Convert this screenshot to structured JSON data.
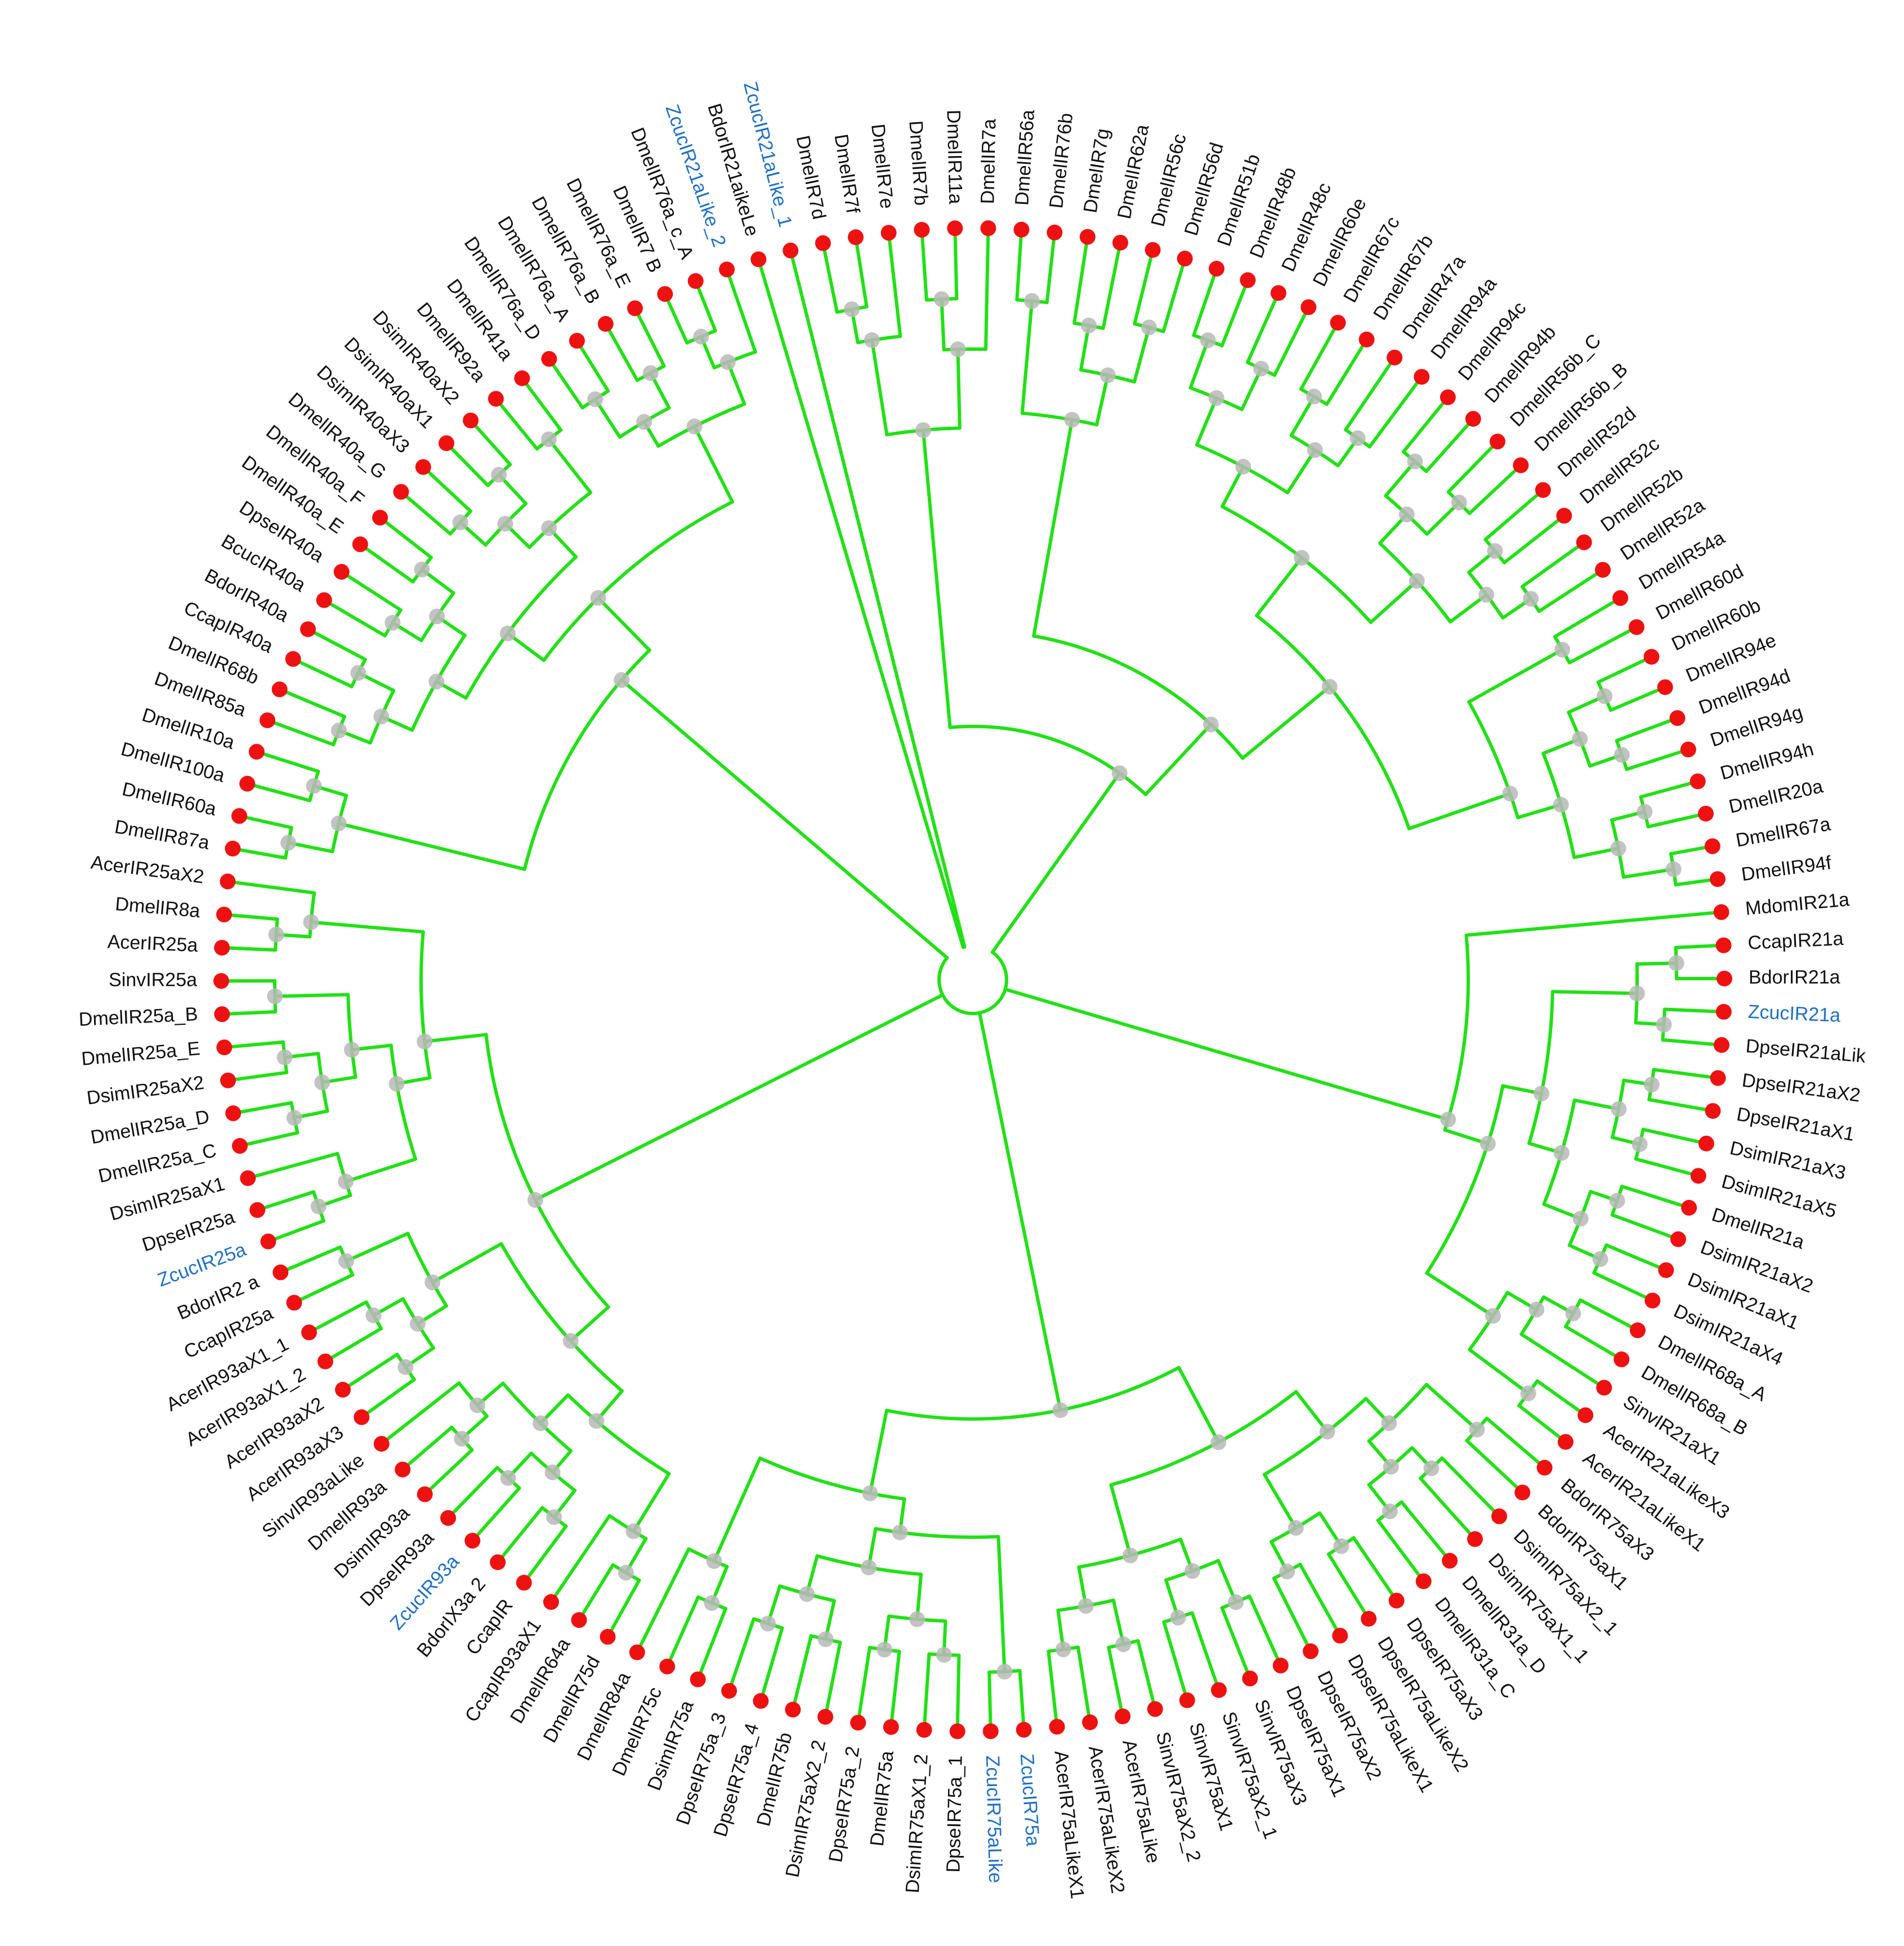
{
  "colors": {
    "branch": "#22e016",
    "tip": "#ee1111",
    "node": "#b8b8b8",
    "label": "#111111",
    "highlight": "#1f6fc5"
  },
  "tree": {
    "tips": [
      {
        "label": "DmelIR7d"
      },
      {
        "label": "DmelIR7f"
      },
      {
        "label": "DmelIR7e"
      },
      {
        "label": "DmelIR7b"
      },
      {
        "label": "DmelIR11a"
      },
      {
        "label": "DmelIR7a"
      },
      {
        "label": "DmelIR56a"
      },
      {
        "label": "DmelIR76b"
      },
      {
        "label": "DmelIR7g"
      },
      {
        "label": "DmelIR62a"
      },
      {
        "label": "DmelIR56c"
      },
      {
        "label": "DmelIR56d"
      },
      {
        "label": "DmelIR51b"
      },
      {
        "label": "DmelIR48b"
      },
      {
        "label": "DmelIR48c"
      },
      {
        "label": "DmelIR60e"
      },
      {
        "label": "DmelIR67c"
      },
      {
        "label": "DmelIR67b"
      },
      {
        "label": "DmelIR47a"
      },
      {
        "label": "DmelIR94a"
      },
      {
        "label": "DmelIR94c"
      },
      {
        "label": "DmelIR94b"
      },
      {
        "label": "DmelIR56b_C"
      },
      {
        "label": "DmelIR56b_B"
      },
      {
        "label": "DmelIR52d"
      },
      {
        "label": "DmelIR52c"
      },
      {
        "label": "DmelIR52b"
      },
      {
        "label": "DmelIR52a"
      },
      {
        "label": "DmelIR54a"
      },
      {
        "label": "DmelIR60d"
      },
      {
        "label": "DmelIR60b"
      },
      {
        "label": "DmelIR94e"
      },
      {
        "label": "DmelIR94d"
      },
      {
        "label": "DmelIR94g"
      },
      {
        "label": "DmelIR94h"
      },
      {
        "label": "DmelIR20a"
      },
      {
        "label": "DmelIR67a"
      },
      {
        "label": "DmelIR94f"
      },
      {
        "label": "MdomIR21a"
      },
      {
        "label": "CcapIR21a"
      },
      {
        "label": "BdorIR21a"
      },
      {
        "label": "ZcucIR21a",
        "highlight": true
      },
      {
        "label": "DpseIR21aLik"
      },
      {
        "label": "DpseIR21aX2"
      },
      {
        "label": "DpseIR21aX1"
      },
      {
        "label": "DsimIR21aX3"
      },
      {
        "label": "DsimIR21aX5"
      },
      {
        "label": "DmelIR21a"
      },
      {
        "label": "DsimIR21aX2"
      },
      {
        "label": "DsimIR21aX1"
      },
      {
        "label": "DsimIR21aX4"
      },
      {
        "label": "DmelIR68a_A"
      },
      {
        "label": "DmelIR68a_B"
      },
      {
        "label": "SinvIR21aX1"
      },
      {
        "label": "AcerIR21aLikeX3"
      },
      {
        "label": "AcerIR21aLikeX1"
      },
      {
        "label": "BdorIR75aX3"
      },
      {
        "label": "BdorIR75aX1"
      },
      {
        "label": "DsimIR75aX2_1"
      },
      {
        "label": "DsimIR75aX1_1"
      },
      {
        "label": "DmelIR31a_D"
      },
      {
        "label": "DmelIR31a_C"
      },
      {
        "label": "DpseIR75aX3"
      },
      {
        "label": "DpseIR75aLikeX2"
      },
      {
        "label": "DpseIR75aLikeX1"
      },
      {
        "label": "DpseIR75aX2"
      },
      {
        "label": "DpseIR75aX1"
      },
      {
        "label": "SinvIR75aX3"
      },
      {
        "label": "SinvIR75aX2_1"
      },
      {
        "label": "SinvIR75aX1"
      },
      {
        "label": "SinvIR75aX2_2"
      },
      {
        "label": "AcerIR75aLike"
      },
      {
        "label": "AcerIR75aLikeX2"
      },
      {
        "label": "AcerIR75aLikeX1"
      },
      {
        "label": "ZcucIR75a",
        "highlight": true
      },
      {
        "label": "ZcucIR75aLike",
        "highlight": true
      },
      {
        "label": "DpseIR75a_1"
      },
      {
        "label": "DsimIR75aX1_2"
      },
      {
        "label": "DmelIR75a"
      },
      {
        "label": "DpseIR75a_2"
      },
      {
        "label": "DsimIR75aX2_2"
      },
      {
        "label": "DmelIR75b"
      },
      {
        "label": "DpseIR75a_4"
      },
      {
        "label": "DpseIR75a_3"
      },
      {
        "label": "DsimIR75a"
      },
      {
        "label": "DmelIR75c"
      },
      {
        "label": "DmelIR84a"
      },
      {
        "label": "DmelIR75d"
      },
      {
        "label": "DmelIR64a"
      },
      {
        "label": "CcapIR93aX1"
      },
      {
        "label": "CcapIR"
      },
      {
        "label": "BdorIX3a    2"
      },
      {
        "label": "ZcucIR93a",
        "highlight": true
      },
      {
        "label": "DpseIR93a"
      },
      {
        "label": "DsimIR93a"
      },
      {
        "label": "DmelIR93a"
      },
      {
        "label": "SinvIR93aLike"
      },
      {
        "label": "AcerIR93aX3"
      },
      {
        "label": "AcerIR93aX2"
      },
      {
        "label": "AcerIR93aX1_2"
      },
      {
        "label": "AcerIR93aX1_1"
      },
      {
        "label": "CcapIR25a"
      },
      {
        "label": "BdorIR2  a"
      },
      {
        "label": "ZcucIR25a",
        "highlight": true
      },
      {
        "label": "DpseIR25a"
      },
      {
        "label": "DsimIR25aX1"
      },
      {
        "label": "DmelIR25a_C"
      },
      {
        "label": "DmelIR25a_D"
      },
      {
        "label": "DsimIR25aX2"
      },
      {
        "label": "DmelIR25a_E"
      },
      {
        "label": "DmelIR25a_B"
      },
      {
        "label": "SinvIR25a"
      },
      {
        "label": "AcerIR25a"
      },
      {
        "label": "DmelIR8a"
      },
      {
        "label": "AcerIR25aX2"
      },
      {
        "label": "DmelIR87a"
      },
      {
        "label": "DmelIR60a"
      },
      {
        "label": "DmelIR100a"
      },
      {
        "label": "DmelIR10a"
      },
      {
        "label": "DmelIR85a"
      },
      {
        "label": "DmelIR68b"
      },
      {
        "label": "CcapIR40a"
      },
      {
        "label": "BdorIR40a"
      },
      {
        "label": "BcucIR40a"
      },
      {
        "label": "DpseIR40a"
      },
      {
        "label": "DmelIR40a_E"
      },
      {
        "label": "DmelIR40a_F"
      },
      {
        "label": "DmelIR40a_G"
      },
      {
        "label": "DsimIR40aX3"
      },
      {
        "label": "DsimIR40aX1"
      },
      {
        "label": "DsimIR40aX2"
      },
      {
        "label": "DmelIR92a"
      },
      {
        "label": "DmelIR41a"
      },
      {
        "label": "DmelIR76a_D"
      },
      {
        "label": "DmelIR76a_A"
      },
      {
        "label": "DmelIR76a_B"
      },
      {
        "label": "DmelIR76a_E"
      },
      {
        "label": "DmelIR7   B"
      },
      {
        "label": "DmelIR76a_c_A"
      },
      {
        "label": "ZcucIR21aLike_2",
        "highlight": true
      },
      {
        "label": "BdorIR21aikeLe"
      },
      {
        "label": "ZcucIR21aLike_1",
        "highlight": true
      }
    ]
  }
}
